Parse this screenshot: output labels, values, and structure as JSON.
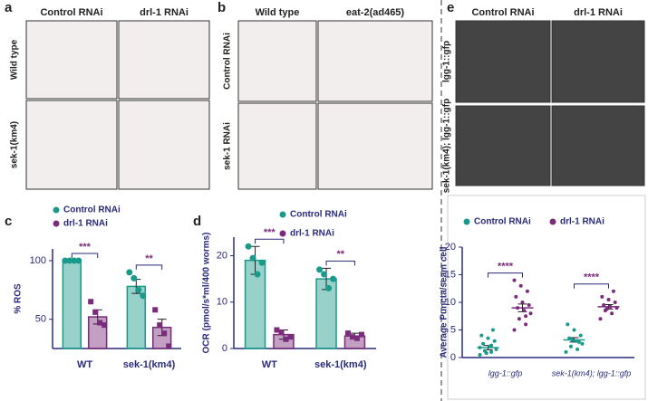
{
  "images": [
    {
      "letter": "a",
      "columns": [
        "Control RNAi",
        "drl-1 RNAi"
      ],
      "rows": [
        "Wild type",
        "sek-1(km4)"
      ]
    },
    {
      "letter": "b",
      "columns": [
        "Wild type",
        "eat-2(ad465)"
      ],
      "rows": [
        "Control RNAi",
        "sek-1 RNAi"
      ]
    },
    {
      "letter": "e",
      "columns": [
        "Control RNAi",
        "drl-1 RNAi"
      ],
      "rows": [
        "lgg-1::gfp",
        "sek-1(km4); lgg-1::gfp"
      ]
    }
  ],
  "chart_data": [
    {
      "type": "bar",
      "letter": "c",
      "y_label": "% ROS",
      "categories": [
        "WT",
        "sek-1(km4)"
      ],
      "significance": [
        "***",
        "**"
      ],
      "ylim": [
        25,
        110
      ],
      "yticks": [
        50,
        100
      ],
      "series": [
        {
          "name": "Control RNAi",
          "color": "#1a9a8a",
          "values": [
            100,
            78
          ],
          "errors": [
            0,
            6
          ],
          "points": [
            [
              100,
              100,
              100,
              100
            ],
            [
              90,
              85,
              75,
              70
            ]
          ]
        },
        {
          "name": "drl-1 RNAi",
          "color": "#7b2b7b",
          "values": [
            52,
            43
          ],
          "errors": [
            6,
            7
          ],
          "points": [
            [
              65,
              56,
              47,
              45
            ],
            [
              58,
              45,
              38,
              27
            ]
          ]
        }
      ]
    },
    {
      "type": "bar",
      "letter": "d",
      "y_label": "OCR (pmol/s*ml/400 worms)",
      "categories": [
        "WT",
        "sek-1(km4)"
      ],
      "significance": [
        "***",
        "**"
      ],
      "ylim": [
        0,
        24
      ],
      "yticks": [
        0,
        10,
        20
      ],
      "series": [
        {
          "name": "Control RNAi",
          "color": "#1a9a8a",
          "values": [
            19,
            15
          ],
          "errors": [
            3,
            2.3
          ],
          "points": [
            [
              22,
              19.5,
              16,
              18.5
            ],
            [
              17,
              16,
              13,
              15
            ]
          ]
        },
        {
          "name": "drl-1 RNAi",
          "color": "#7b2b7b",
          "values": [
            3,
            2.7
          ],
          "errors": [
            1,
            0.6
          ],
          "points": [
            [
              4,
              3.5,
              2,
              2.5
            ],
            [
              3.3,
              2.5,
              2.2,
              3
            ]
          ]
        }
      ]
    },
    {
      "type": "strip",
      "letter": "",
      "y_label": "Average Puncta/seam cell",
      "categories": [
        "lgg-1::gfp",
        "sek-1(km4); lgg-1::gfp"
      ],
      "significance": [
        "****",
        "****"
      ],
      "ylim": [
        0,
        20
      ],
      "yticks": [
        0,
        5,
        10,
        15,
        20
      ],
      "series": [
        {
          "name": "Control RNAi",
          "color": "#1a9a8a",
          "values": [
            1.8,
            3.2
          ],
          "errors": [
            0.4,
            0.4
          ],
          "points": [
            [
              0.5,
              1,
              1.2,
              1.5,
              2,
              2.5,
              3,
              3.5,
              4,
              5,
              0.8,
              1.8,
              2.2
            ],
            [
              1,
              1.5,
              2,
              2.5,
              3,
              3.5,
              4,
              5,
              6,
              2.8,
              3.2
            ]
          ]
        },
        {
          "name": "drl-1 RNAi",
          "color": "#7b2b7b",
          "values": [
            9,
            9.2
          ],
          "errors": [
            0.7,
            0.4
          ],
          "points": [
            [
              5,
              6,
              7,
              8,
              8.5,
              9,
              9.5,
              10,
              11,
              12,
              13,
              14,
              7.5
            ],
            [
              7,
              8,
              8.5,
              9,
              9.2,
              9.5,
              10,
              10.5,
              11,
              12,
              8.8
            ]
          ]
        }
      ]
    }
  ]
}
